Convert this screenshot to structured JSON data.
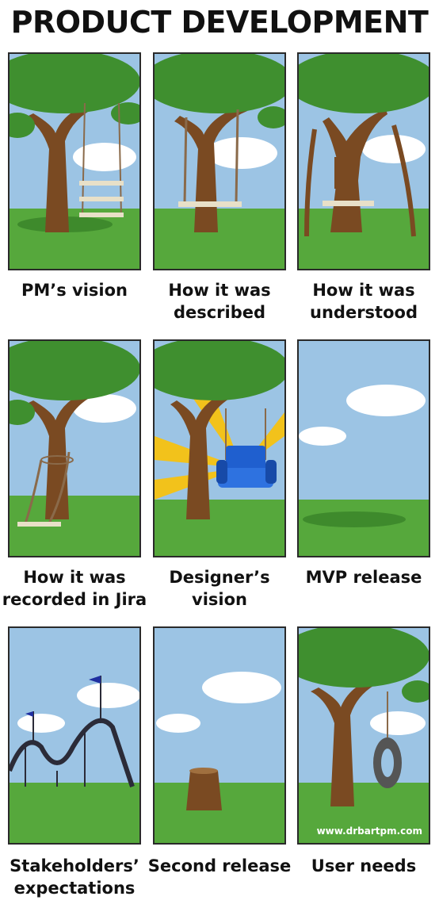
{
  "title": "PRODUCT DEVELOPMENT",
  "panels": [
    {
      "caption": "PM’s vision"
    },
    {
      "caption": "How it was described"
    },
    {
      "caption": "How it was understood"
    },
    {
      "caption": "How it was recorded in Jira"
    },
    {
      "caption": "Designer’s vision"
    },
    {
      "caption": "MVP release"
    },
    {
      "caption": "Stakeholders’ expectations"
    },
    {
      "caption": "Second release"
    },
    {
      "caption": "User needs"
    }
  ],
  "watermark": "www.drbartpm.com",
  "colors": {
    "sky": "#9cc4e4",
    "grass": "#56a83c",
    "trunk": "#7a4a22",
    "foliage": "#3f8f2f",
    "chair": "#1f5fcf",
    "sunburst": "#f2c21b"
  }
}
